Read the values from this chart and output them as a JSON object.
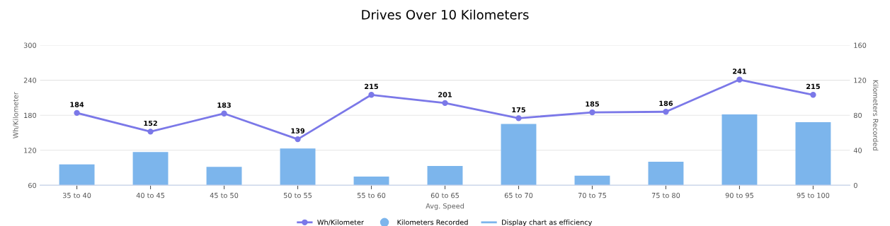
{
  "chart_data": {
    "type": "bar",
    "title": "Drives Over 10 Kilometers",
    "xlabel": "Avg. Speed",
    "ylabel": "Wh/Kilometer",
    "y2label": "Kilometers Recorded",
    "categories": [
      "35 to 40",
      "40 to 45",
      "45 to 50",
      "50 to 55",
      "55 to 60",
      "60 to 65",
      "65 to 70",
      "70 to 75",
      "75 to 80",
      "90 to 95",
      "95 to 100"
    ],
    "series": [
      {
        "name": "Wh/Kilometer",
        "type": "line",
        "color": "#7b78e8",
        "marker": "circle",
        "values": [
          184,
          152,
          183,
          139,
          215,
          201,
          175,
          185,
          186,
          241,
          215
        ],
        "value_labels": [
          "184",
          "152",
          "183",
          "139",
          "215",
          "201",
          "175",
          "185",
          "186",
          "241",
          "215"
        ]
      },
      {
        "name": "Kilometers Recorded",
        "axis": "y2",
        "color": "#7cb5ec",
        "values": [
          24,
          38,
          21,
          42,
          10,
          22,
          70,
          11,
          27,
          81,
          72
        ]
      },
      {
        "name": "Display chart as efficiency",
        "type": "line",
        "color": "#7cb5ec",
        "marker": "none",
        "values": [
          null,
          null,
          null,
          null,
          null,
          null,
          null,
          null,
          null,
          null,
          null
        ]
      }
    ],
    "ylim": [
      60,
      300
    ],
    "yticks": [
      60,
      120,
      180,
      240,
      300
    ],
    "y2lim": [
      0,
      160
    ],
    "y2ticks": [
      0,
      40,
      80,
      120,
      160
    ],
    "grid": "y",
    "legend": "bottom"
  }
}
